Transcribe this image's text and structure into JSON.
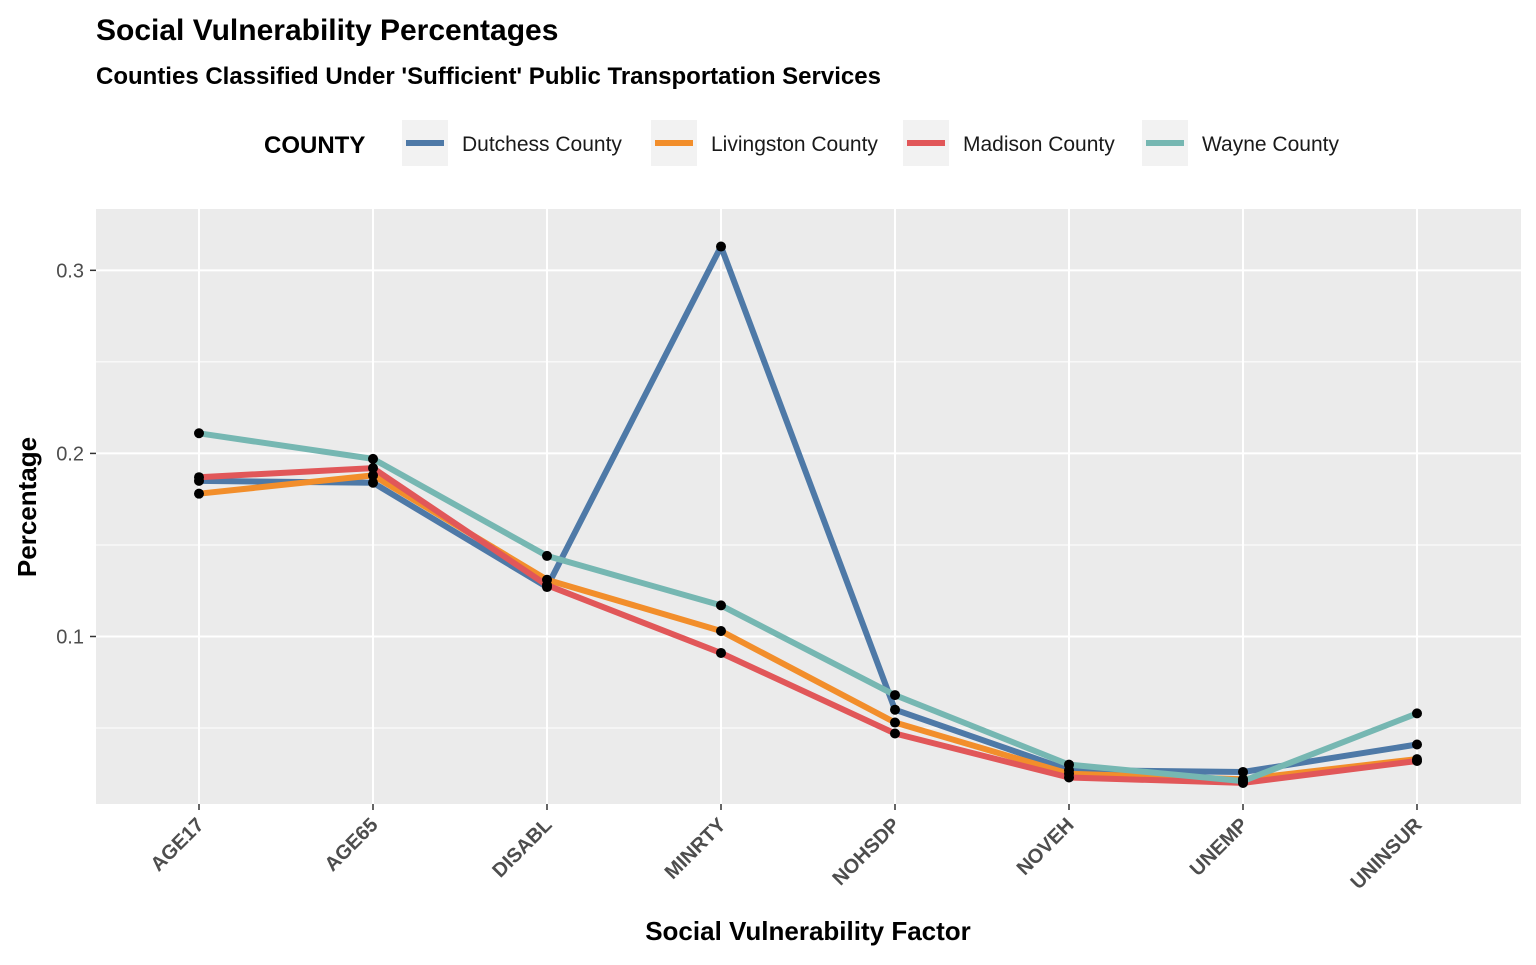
{
  "chart_data": {
    "type": "line",
    "title": "Social Vulnerability Percentages",
    "subtitle": "Counties Classified Under 'Sufficient' Public Transportation Services",
    "xlabel": "Social Vulnerability Factor",
    "ylabel": "Percentage",
    "categories": [
      "AGE17",
      "AGE65",
      "DISABL",
      "MINRTY",
      "NOHSDP",
      "NOVEH",
      "UNEMP",
      "UNINSUR"
    ],
    "ylim": [
      0.0085,
      0.3335
    ],
    "yticks": [
      0.1,
      0.2,
      0.3
    ],
    "ytick_labels": [
      "0.1",
      "0.2",
      "0.3"
    ],
    "grid": true,
    "legend": {
      "title": "COUNTY",
      "position": "top"
    },
    "series": [
      {
        "name": "Dutchess County",
        "color": "#4e79a7",
        "values": [
          0.185,
          0.184,
          0.127,
          0.313,
          0.06,
          0.027,
          0.026,
          0.041
        ]
      },
      {
        "name": "Livingston County",
        "color": "#f28e2b",
        "values": [
          0.178,
          0.188,
          0.131,
          0.103,
          0.053,
          0.025,
          0.022,
          0.033
        ]
      },
      {
        "name": "Madison County",
        "color": "#e15759",
        "values": [
          0.187,
          0.192,
          0.128,
          0.091,
          0.047,
          0.023,
          0.02,
          0.032
        ]
      },
      {
        "name": "Wayne County",
        "color": "#76b7b2",
        "values": [
          0.211,
          0.197,
          0.144,
          0.117,
          0.068,
          0.03,
          0.021,
          0.058
        ]
      }
    ]
  }
}
